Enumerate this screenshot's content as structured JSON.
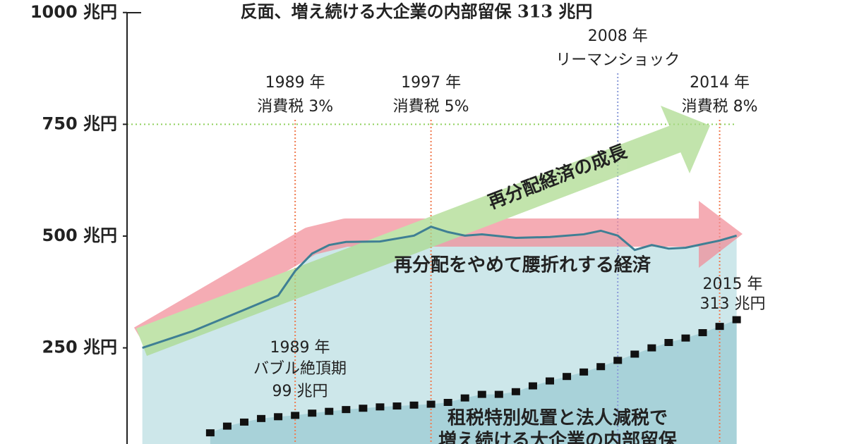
{
  "chart_data": {
    "type": "line",
    "title": "反面、増え続ける大企業の内部留保 313 兆円",
    "xlim": [
      1979.1,
      2021.5
    ],
    "ylim": [
      35,
      1028
    ],
    "yticks": [
      {
        "value": 250,
        "label": "250 兆円"
      },
      {
        "value": 500,
        "label": "500 兆円"
      },
      {
        "value": 750,
        "label": "750 兆円"
      },
      {
        "value": 1000,
        "label": "1000 兆円"
      }
    ],
    "guide": {
      "value": 750,
      "color": "#8fd05c"
    },
    "series": [
      {
        "color": "#3f7f94",
        "area_color": "#cde7ea",
        "x": [
          1980,
          1983,
          1986,
          1988,
          1989,
          1990,
          1991,
          1992,
          1994,
          1996,
          1997,
          1998,
          1999,
          2000,
          2002,
          2004,
          2006,
          2007,
          2008,
          2009,
          2010,
          2011,
          2012,
          2013,
          2014,
          2015
        ],
        "values": [
          250,
          288,
          335,
          367,
          422,
          461,
          480,
          487,
          488,
          501,
          521,
          509,
          501,
          504,
          496,
          498,
          504,
          512,
          501,
          469,
          480,
          472,
          474,
          482,
          490,
          501
        ]
      },
      {
        "color": "#111111",
        "area_color": "#a8d2d9",
        "x": [
          1984,
          1985,
          1986,
          1987,
          1988,
          1989,
          1990,
          1991,
          1992,
          1993,
          1994,
          1995,
          1996,
          1997,
          1998,
          1999,
          2000,
          2001,
          2002,
          2003,
          2004,
          2005,
          2006,
          2007,
          2008,
          2009,
          2010,
          2011,
          2012,
          2013,
          2014,
          2015
        ],
        "values": [
          60,
          75,
          84,
          92,
          96,
          99,
          104,
          108,
          112,
          115,
          118,
          120,
          122,
          124,
          128,
          138,
          146,
          146,
          152,
          165,
          176,
          186,
          196,
          208,
          222,
          236,
          250,
          262,
          272,
          284,
          298,
          313
        ]
      }
    ],
    "events": [
      {
        "year": 1989,
        "label": [
          "1989 年",
          "消費税 3%"
        ],
        "color": "#f07a4f"
      },
      {
        "year": 1997,
        "label": [
          "1997 年",
          "消費税 5%"
        ],
        "color": "#f07a4f"
      },
      {
        "year": 2008,
        "label": [
          "2008 年",
          "リーマンショック"
        ],
        "color": "#8a9ad8"
      },
      {
        "year": 2014,
        "label": [
          "2014 年",
          "消費税 8%"
        ],
        "color": "#f07a4f"
      }
    ],
    "arrow_labels": [
      "再分配経済の成長",
      "再分配をやめて腰折れする経済"
    ],
    "annotations": [
      [
        "2015 年",
        "313 兆円"
      ],
      [
        "1989 年",
        "バブル絶頂期",
        "99 兆円"
      ],
      [
        "租税特別処置と法人減税で",
        "増え続ける大企業の内部留保"
      ]
    ]
  }
}
